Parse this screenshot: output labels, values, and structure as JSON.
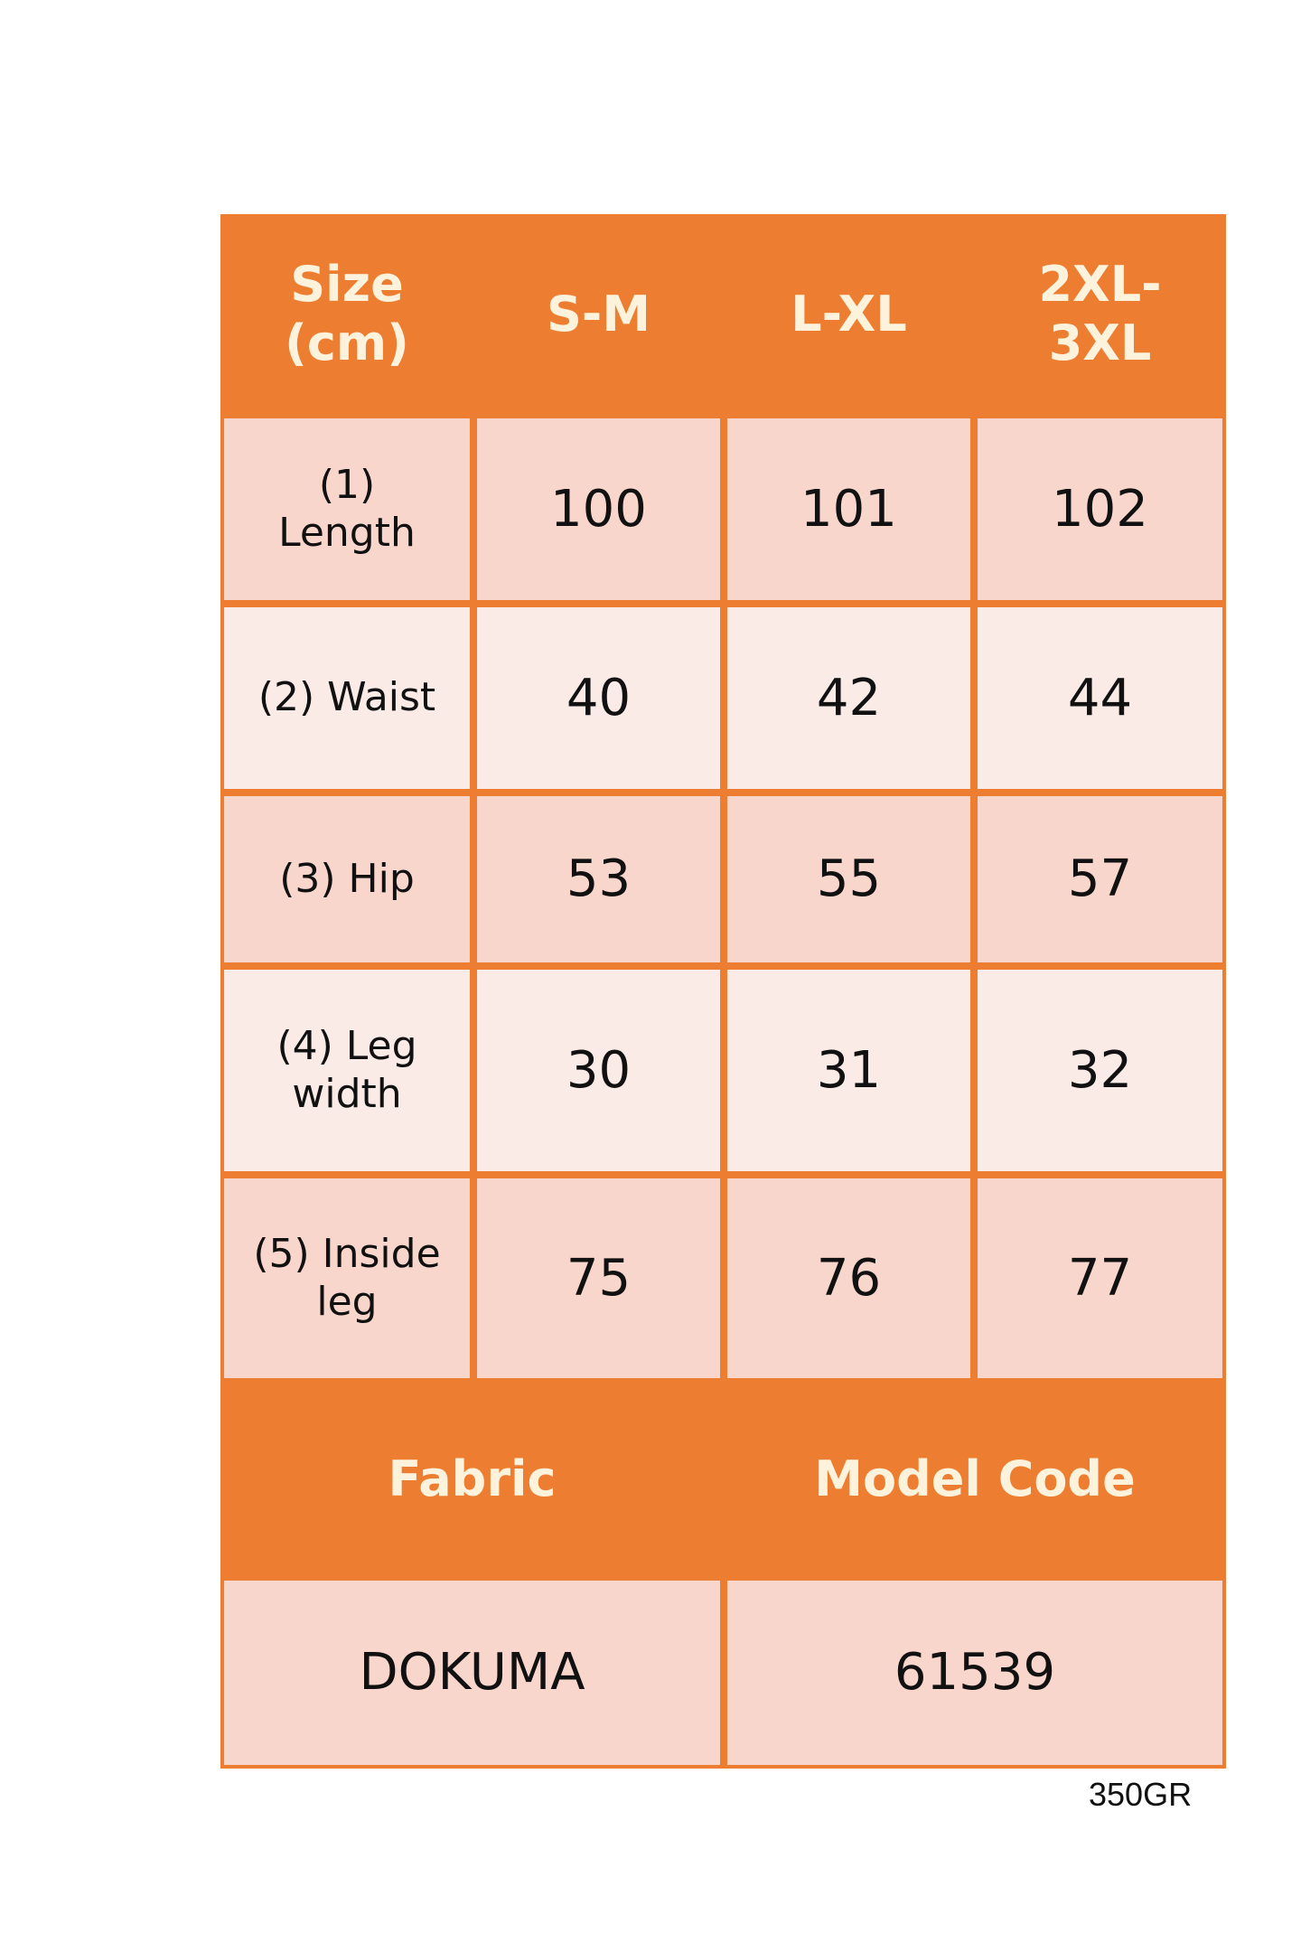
{
  "header": {
    "size_label": "Size (cm)",
    "columns": [
      "S-M",
      "L-XL",
      "2XL-3XL"
    ]
  },
  "rows": [
    {
      "label": "(1) Length",
      "values": [
        "100",
        "101",
        "102"
      ]
    },
    {
      "label": "(2) Waist",
      "values": [
        "40",
        "42",
        "44"
      ]
    },
    {
      "label": "(3) Hip",
      "values": [
        "53",
        "55",
        "57"
      ]
    },
    {
      "label": "(4) Leg width",
      "values": [
        "30",
        "31",
        "32"
      ]
    },
    {
      "label": "(5) Inside leg",
      "values": [
        "75",
        "76",
        "77"
      ]
    }
  ],
  "footer": {
    "fabric_label": "Fabric",
    "model_code_label": "Model Code",
    "fabric_value": "DOKUMA",
    "model_code_value": "61539"
  },
  "note": "350GR",
  "colors": {
    "header": "#ed7d31",
    "row_dark": "#f8d6cc",
    "row_light": "#fbebe6"
  }
}
